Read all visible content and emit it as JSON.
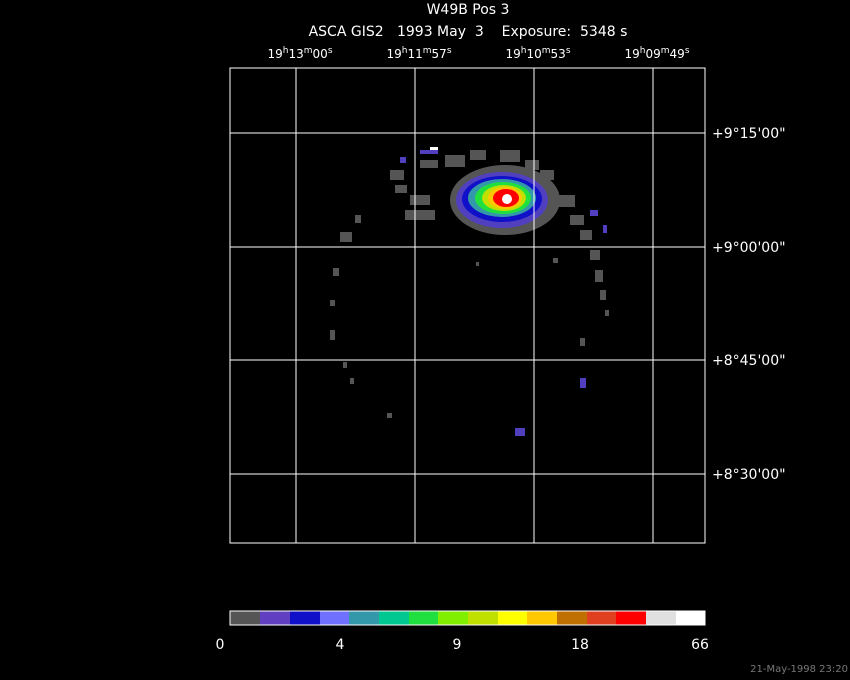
{
  "header": {
    "title": "W49B Pos 3",
    "subtitle": "ASCA GIS2   1993 May  3    Exposure:  5348 s"
  },
  "ra_labels": [
    [
      "19",
      "h",
      "13",
      "m",
      "00",
      "s"
    ],
    [
      "19",
      "h",
      "11",
      "m",
      "57",
      "s"
    ],
    [
      "19",
      "h",
      "10",
      "m",
      "53",
      "s"
    ],
    [
      "19",
      "h",
      "09",
      "m",
      "49",
      "s"
    ]
  ],
  "dec_labels": [
    "+9°15'00\"",
    "+9°00'00\"",
    "+8°45'00\"",
    "+8°30'00\""
  ],
  "colorbar_labels": [
    "0",
    "4",
    "9",
    "18",
    "66"
  ],
  "footer": {
    "timestamp": "21-May-1998 23:20"
  }
}
